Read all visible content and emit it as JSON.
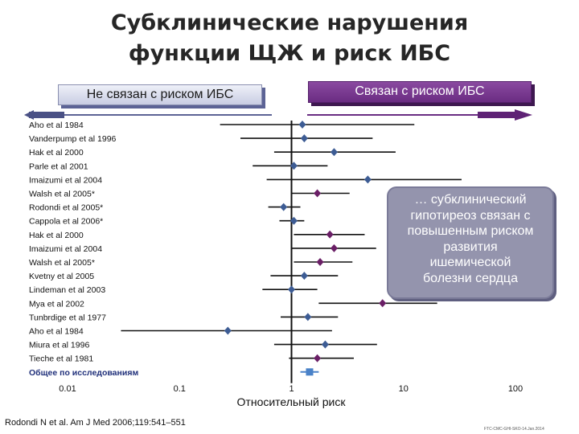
{
  "slide": {
    "title_line1": "Субклинические нарушения",
    "title_line2": "функции ЩЖ и риск ИБС",
    "left_label": "Не связан с риском ИБС",
    "right_label": "Связан с риском ИБС",
    "callout": [
      "… субклинический",
      "гипотиреоз связан с",
      "повышенным риском",
      "развития",
      "ишемической",
      "болезни сердца"
    ],
    "footnote": "Rodondi N et al. Am J Med 2006;119:541–551",
    "corner_text": "FTC-CMC-GHI-SKO-14.Jan.2014"
  },
  "colors": {
    "blue_marker": "#3d5c94",
    "purple_marker": "#6a1f66",
    "summary_marker": "#4a82c8",
    "summary_label": "#1f2f7a",
    "right_pill": "#6a2c82",
    "left_pill": "#c9cde3",
    "callout": "#9494ad"
  },
  "chart_data": {
    "type": "forest",
    "xlabel": "Относительный риск",
    "x_scale": "log",
    "xlim": [
      0.01,
      100
    ],
    "ticks": [
      "0.01",
      "0.1",
      "1",
      "10",
      "100"
    ],
    "reference_line": 1,
    "studies": [
      {
        "label": "Aho et al 1984",
        "estimate": 1.25,
        "low": 0.23,
        "high": 12.5,
        "marker": "blue"
      },
      {
        "label": "Vanderpump et al 1996",
        "estimate": 1.3,
        "low": 0.35,
        "high": 5.3,
        "marker": "blue"
      },
      {
        "label": "Hak et al 2000",
        "estimate": 2.4,
        "low": 0.7,
        "high": 8.5,
        "marker": "blue"
      },
      {
        "label": "Parle et al 2001",
        "estimate": 1.05,
        "low": 0.45,
        "high": 2.1,
        "marker": "blue"
      },
      {
        "label": "Imaizumi et al 2004",
        "estimate": 4.8,
        "low": 0.6,
        "high": 33,
        "marker": "blue"
      },
      {
        "label": "Walsh et al 2005*",
        "estimate": 1.7,
        "low": 1.0,
        "high": 3.3,
        "marker": "purple"
      },
      {
        "label": "Rodondi et al 2005*",
        "estimate": 0.85,
        "low": 0.62,
        "high": 1.2,
        "marker": "blue"
      },
      {
        "label": "Cappola et al 2006*",
        "estimate": 1.05,
        "low": 0.78,
        "high": 1.3,
        "marker": "blue"
      },
      {
        "label": "Hak et al 2000",
        "estimate": 2.2,
        "low": 1.05,
        "high": 4.5,
        "marker": "purple"
      },
      {
        "label": "Imaizumi et al 2004",
        "estimate": 2.4,
        "low": 1.0,
        "high": 5.7,
        "marker": "purple"
      },
      {
        "label": "Walsh et al 2005*",
        "estimate": 1.8,
        "low": 1.05,
        "high": 3.5,
        "marker": "purple"
      },
      {
        "label": "Kvetny et al 2005",
        "estimate": 1.3,
        "low": 0.65,
        "high": 2.6,
        "marker": "blue"
      },
      {
        "label": "Lindeman et al 2003",
        "estimate": 1.0,
        "low": 0.55,
        "high": 1.7,
        "marker": "blue"
      },
      {
        "label": "Mya et al 2002",
        "estimate": 6.5,
        "low": 1.75,
        "high": 20,
        "marker": "purple"
      },
      {
        "label": "Tunbrdige et al 1977",
        "estimate": 1.4,
        "low": 0.8,
        "high": 2.6,
        "marker": "blue"
      },
      {
        "label": "Aho et al 1984",
        "estimate": 0.27,
        "low": 0.03,
        "high": 2.3,
        "marker": "blue"
      },
      {
        "label": "Miura et al 1996",
        "estimate": 2.0,
        "low": 0.7,
        "high": 5.8,
        "marker": "blue"
      },
      {
        "label": "Tieche et al 1981",
        "estimate": 1.7,
        "low": 0.95,
        "high": 3.6,
        "marker": "purple"
      },
      {
        "label": "Общее по исследованиям",
        "estimate": 1.45,
        "low": 1.2,
        "high": 1.75,
        "marker": "summary"
      }
    ]
  }
}
